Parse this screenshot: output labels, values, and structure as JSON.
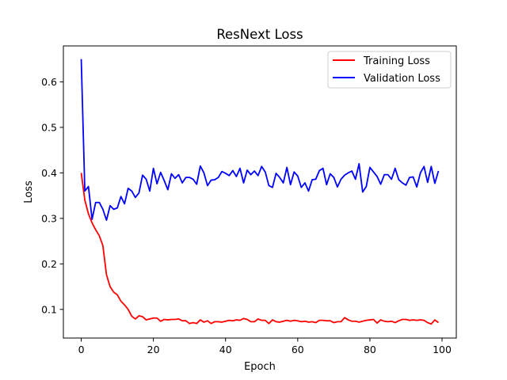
{
  "chart_data": {
    "type": "line",
    "title": "ResNext Loss",
    "xlabel": "Epoch",
    "ylabel": "Loss",
    "xlim": [
      -4.95,
      103.95
    ],
    "ylim": [
      0.0371,
      0.6789
    ],
    "xticks": [
      0,
      20,
      40,
      60,
      80,
      100
    ],
    "yticks": [
      0.1,
      0.2,
      0.3,
      0.4,
      0.5,
      0.6
    ],
    "legend_position": "top-right",
    "grid": false,
    "series": [
      {
        "name": "Training Loss",
        "color": "#ff0000",
        "x": [
          0,
          1,
          2,
          3,
          4,
          5,
          6,
          7,
          8,
          9,
          10,
          11,
          12,
          13,
          14,
          15,
          16,
          17,
          18,
          19,
          20,
          21,
          22,
          23,
          24,
          25,
          26,
          27,
          28,
          29,
          30,
          31,
          32,
          33,
          34,
          35,
          36,
          37,
          38,
          39,
          40,
          41,
          42,
          43,
          44,
          45,
          46,
          47,
          48,
          49,
          50,
          51,
          52,
          53,
          54,
          55,
          56,
          57,
          58,
          59,
          60,
          61,
          62,
          63,
          64,
          65,
          66,
          67,
          68,
          69,
          70,
          71,
          72,
          73,
          74,
          75,
          76,
          77,
          78,
          79,
          80,
          81,
          82,
          83,
          84,
          85,
          86,
          87,
          88,
          89,
          90,
          91,
          92,
          93,
          94,
          95,
          96,
          97,
          98,
          99
        ],
        "y": [
          0.4,
          0.34,
          0.31,
          0.29,
          0.275,
          0.262,
          0.24,
          0.176,
          0.15,
          0.138,
          0.132,
          0.118,
          0.11,
          0.1,
          0.085,
          0.079,
          0.086,
          0.084,
          0.077,
          0.079,
          0.081,
          0.081,
          0.074,
          0.078,
          0.077,
          0.078,
          0.078,
          0.079,
          0.075,
          0.075,
          0.069,
          0.071,
          0.069,
          0.077,
          0.072,
          0.075,
          0.069,
          0.073,
          0.073,
          0.072,
          0.074,
          0.076,
          0.075,
          0.077,
          0.076,
          0.08,
          0.078,
          0.073,
          0.073,
          0.079,
          0.076,
          0.076,
          0.069,
          0.077,
          0.073,
          0.072,
          0.074,
          0.076,
          0.074,
          0.076,
          0.075,
          0.073,
          0.074,
          0.072,
          0.073,
          0.071,
          0.076,
          0.076,
          0.075,
          0.075,
          0.071,
          0.073,
          0.073,
          0.082,
          0.077,
          0.074,
          0.074,
          0.072,
          0.074,
          0.076,
          0.077,
          0.078,
          0.07,
          0.077,
          0.074,
          0.073,
          0.074,
          0.071,
          0.075,
          0.078,
          0.078,
          0.076,
          0.077,
          0.076,
          0.077,
          0.076,
          0.071,
          0.068,
          0.077,
          0.071
        ]
      },
      {
        "name": "Validation Loss",
        "color": "#0000ff",
        "x": [
          0,
          1,
          2,
          3,
          4,
          5,
          6,
          7,
          8,
          9,
          10,
          11,
          12,
          13,
          14,
          15,
          16,
          17,
          18,
          19,
          20,
          21,
          22,
          23,
          24,
          25,
          26,
          27,
          28,
          29,
          30,
          31,
          32,
          33,
          34,
          35,
          36,
          37,
          38,
          39,
          40,
          41,
          42,
          43,
          44,
          45,
          46,
          47,
          48,
          49,
          50,
          51,
          52,
          53,
          54,
          55,
          56,
          57,
          58,
          59,
          60,
          61,
          62,
          63,
          64,
          65,
          66,
          67,
          68,
          69,
          70,
          71,
          72,
          73,
          74,
          75,
          76,
          77,
          78,
          79,
          80,
          81,
          82,
          83,
          84,
          85,
          86,
          87,
          88,
          89,
          90,
          91,
          92,
          93,
          94,
          95,
          96,
          97,
          98,
          99
        ],
        "y": [
          0.65,
          0.36,
          0.37,
          0.298,
          0.335,
          0.335,
          0.32,
          0.296,
          0.328,
          0.32,
          0.323,
          0.348,
          0.332,
          0.366,
          0.36,
          0.346,
          0.356,
          0.395,
          0.386,
          0.36,
          0.41,
          0.376,
          0.401,
          0.383,
          0.363,
          0.398,
          0.388,
          0.396,
          0.378,
          0.39,
          0.39,
          0.386,
          0.375,
          0.415,
          0.4,
          0.372,
          0.384,
          0.385,
          0.39,
          0.403,
          0.399,
          0.394,
          0.405,
          0.392,
          0.41,
          0.378,
          0.406,
          0.396,
          0.404,
          0.394,
          0.414,
          0.402,
          0.372,
          0.368,
          0.399,
          0.39,
          0.378,
          0.412,
          0.374,
          0.402,
          0.393,
          0.368,
          0.378,
          0.36,
          0.385,
          0.386,
          0.405,
          0.41,
          0.374,
          0.398,
          0.39,
          0.369,
          0.386,
          0.395,
          0.4,
          0.404,
          0.386,
          0.42,
          0.358,
          0.37,
          0.412,
          0.402,
          0.392,
          0.375,
          0.396,
          0.396,
          0.386,
          0.41,
          0.385,
          0.378,
          0.373,
          0.39,
          0.391,
          0.369,
          0.4,
          0.414,
          0.379,
          0.414,
          0.377,
          0.404
        ]
      }
    ]
  }
}
